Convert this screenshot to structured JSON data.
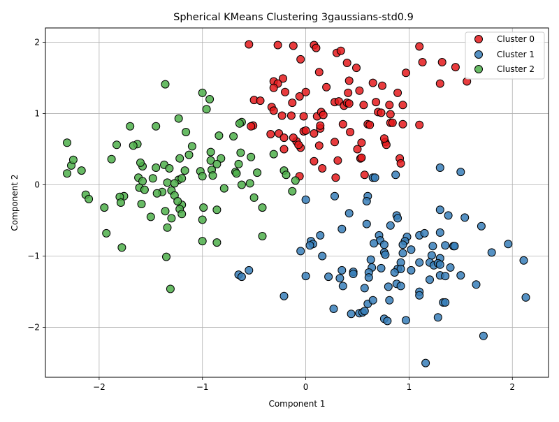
{
  "chart_data": {
    "type": "scatter",
    "title": "Spherical KMeans Clustering 3gaussians-std0.9",
    "xlabel": "Component 1",
    "ylabel": "Component 2",
    "xlim": [
      -2.52,
      2.35
    ],
    "ylim": [
      -2.7,
      2.2
    ],
    "x_ticks": [
      -2,
      -1,
      0,
      1,
      2
    ],
    "y_ticks": [
      -2,
      -1,
      0,
      1,
      2
    ],
    "grid": true,
    "legend_position": "top-right",
    "series": [
      {
        "name": "Cluster 0",
        "color": "#e41a1c",
        "points": [
          [
            -0.55,
            1.97
          ],
          [
            -0.27,
            1.96
          ],
          [
            -0.12,
            1.95
          ],
          [
            0.08,
            1.96
          ],
          [
            0.1,
            1.92
          ],
          [
            0.3,
            1.85
          ],
          [
            0.34,
            1.88
          ],
          [
            0.4,
            1.71
          ],
          [
            0.49,
            1.64
          ],
          [
            1.1,
            1.94
          ],
          [
            1.13,
            1.72
          ],
          [
            1.32,
            1.72
          ],
          [
            1.45,
            1.65
          ],
          [
            1.56,
            1.45
          ],
          [
            -0.05,
            1.76
          ],
          [
            0.13,
            1.58
          ],
          [
            -0.31,
            1.45
          ],
          [
            -0.22,
            1.49
          ],
          [
            -0.27,
            1.42
          ],
          [
            -0.31,
            1.36
          ],
          [
            -0.2,
            1.3
          ],
          [
            0.2,
            1.37
          ],
          [
            0.42,
            1.46
          ],
          [
            0.52,
            1.32
          ],
          [
            0.41,
            1.29
          ],
          [
            0.65,
            1.43
          ],
          [
            0.74,
            1.39
          ],
          [
            0.97,
            1.57
          ],
          [
            0.89,
            1.29
          ],
          [
            1.3,
            1.42
          ],
          [
            -0.5,
            1.19
          ],
          [
            -0.44,
            1.18
          ],
          [
            -0.06,
            1.24
          ],
          [
            0.0,
            1.3
          ],
          [
            -0.13,
            1.15
          ],
          [
            0.28,
            1.16
          ],
          [
            0.32,
            1.17
          ],
          [
            0.37,
            1.11
          ],
          [
            0.4,
            1.15
          ],
          [
            0.42,
            1.14
          ],
          [
            0.56,
            1.12
          ],
          [
            0.68,
            1.16
          ],
          [
            0.81,
            1.12
          ],
          [
            0.94,
            1.12
          ],
          [
            -0.33,
            1.09
          ],
          [
            -0.31,
            1.04
          ],
          [
            -0.23,
            0.97
          ],
          [
            -0.14,
            0.97
          ],
          [
            -0.02,
            0.96
          ],
          [
            0.11,
            0.96
          ],
          [
            0.15,
            1.02
          ],
          [
            0.17,
            0.98
          ],
          [
            0.7,
            1.02
          ],
          [
            0.73,
            1.01
          ],
          [
            0.82,
            0.99
          ],
          [
            -0.51,
            0.83
          ],
          [
            -0.53,
            0.82
          ],
          [
            -0.34,
            0.71
          ],
          [
            -0.26,
            0.72
          ],
          [
            -0.21,
            0.66
          ],
          [
            -0.09,
            0.61
          ],
          [
            -0.12,
            0.66
          ],
          [
            -0.02,
            0.75
          ],
          [
            0.0,
            0.76
          ],
          [
            0.08,
            0.72
          ],
          [
            0.14,
            0.79
          ],
          [
            0.14,
            0.83
          ],
          [
            0.36,
            0.85
          ],
          [
            0.43,
            0.74
          ],
          [
            0.6,
            0.85
          ],
          [
            0.62,
            0.84
          ],
          [
            0.77,
            0.6
          ],
          [
            0.78,
            0.56
          ],
          [
            0.82,
            0.87
          ],
          [
            0.84,
            0.87
          ],
          [
            0.94,
            0.85
          ],
          [
            1.1,
            0.84
          ],
          [
            -0.21,
            0.5
          ],
          [
            -0.05,
            0.52
          ],
          [
            -0.07,
            0.56
          ],
          [
            0.13,
            0.55
          ],
          [
            0.28,
            0.6
          ],
          [
            0.5,
            0.5
          ],
          [
            0.54,
            0.59
          ],
          [
            0.76,
            0.65
          ],
          [
            0.08,
            0.33
          ],
          [
            0.16,
            0.23
          ],
          [
            0.31,
            0.34
          ],
          [
            0.53,
            0.37
          ],
          [
            0.54,
            0.38
          ],
          [
            0.91,
            0.37
          ],
          [
            0.92,
            0.3
          ],
          [
            -0.06,
            0.12
          ],
          [
            0.29,
            0.1
          ],
          [
            0.57,
            0.14
          ]
        ]
      },
      {
        "name": "Cluster 1",
        "color": "#377eb8",
        "points": [
          [
            1.3,
            0.24
          ],
          [
            1.5,
            0.18
          ],
          [
            0.87,
            0.14
          ],
          [
            0.65,
            0.1
          ],
          [
            0.67,
            0.1
          ],
          [
            0.0,
            -0.21
          ],
          [
            0.28,
            -0.16
          ],
          [
            0.6,
            -0.16
          ],
          [
            0.59,
            -0.23
          ],
          [
            1.3,
            -0.35
          ],
          [
            1.38,
            -0.43
          ],
          [
            1.54,
            -0.46
          ],
          [
            0.42,
            -0.4
          ],
          [
            0.82,
            -0.57
          ],
          [
            0.88,
            -0.43
          ],
          [
            0.89,
            -0.47
          ],
          [
            0.35,
            -0.62
          ],
          [
            0.59,
            -0.55
          ],
          [
            1.7,
            -0.58
          ],
          [
            1.3,
            -0.67
          ],
          [
            1.1,
            -0.71
          ],
          [
            1.15,
            -0.68
          ],
          [
            0.98,
            -0.73
          ],
          [
            0.71,
            -0.71
          ],
          [
            0.72,
            -0.78
          ],
          [
            0.66,
            -0.82
          ],
          [
            0.76,
            -0.84
          ],
          [
            0.96,
            -0.79
          ],
          [
            0.94,
            -0.84
          ],
          [
            1.02,
            -0.91
          ],
          [
            1.23,
            -0.86
          ],
          [
            1.35,
            -0.85
          ],
          [
            1.43,
            -0.86
          ],
          [
            1.44,
            -0.86
          ],
          [
            0.05,
            -0.79
          ],
          [
            0.07,
            -0.83
          ],
          [
            0.04,
            -0.85
          ],
          [
            0.14,
            -0.71
          ],
          [
            -0.05,
            -0.93
          ],
          [
            0.76,
            -0.95
          ],
          [
            0.77,
            -0.98
          ],
          [
            0.94,
            -0.96
          ],
          [
            1.22,
            -0.99
          ],
          [
            1.3,
            -1.03
          ],
          [
            1.8,
            -0.95
          ],
          [
            1.96,
            -0.83
          ],
          [
            2.11,
            -1.06
          ],
          [
            0.16,
            -1.0
          ],
          [
            0.63,
            -1.05
          ],
          [
            0.73,
            -1.17
          ],
          [
            0.64,
            -1.16
          ],
          [
            0.89,
            -1.18
          ],
          [
            0.92,
            -1.09
          ],
          [
            0.92,
            -1.18
          ],
          [
            0.86,
            -1.23
          ],
          [
            1.02,
            -1.2
          ],
          [
            1.1,
            -1.09
          ],
          [
            1.2,
            -1.09
          ],
          [
            1.24,
            -1.13
          ],
          [
            1.28,
            -1.1
          ],
          [
            1.3,
            -1.12
          ],
          [
            1.4,
            -1.16
          ],
          [
            0.35,
            -1.2
          ],
          [
            0.46,
            -1.22
          ],
          [
            0.46,
            -1.25
          ],
          [
            0.61,
            -1.23
          ],
          [
            0.61,
            -1.3
          ],
          [
            0.33,
            -1.31
          ],
          [
            0.22,
            -1.29
          ],
          [
            0.0,
            -1.28
          ],
          [
            -0.65,
            -1.26
          ],
          [
            -0.62,
            -1.29
          ],
          [
            -0.55,
            -1.2
          ],
          [
            0.36,
            -1.42
          ],
          [
            0.57,
            -1.45
          ],
          [
            0.8,
            -1.43
          ],
          [
            0.88,
            -1.39
          ],
          [
            0.92,
            -1.42
          ],
          [
            1.1,
            -1.5
          ],
          [
            1.1,
            -1.55
          ],
          [
            1.2,
            -1.33
          ],
          [
            1.3,
            -1.27
          ],
          [
            1.35,
            -1.28
          ],
          [
            1.5,
            -1.27
          ],
          [
            1.65,
            -1.4
          ],
          [
            2.13,
            -1.58
          ],
          [
            -0.21,
            -1.56
          ],
          [
            0.27,
            -1.74
          ],
          [
            0.44,
            -1.81
          ],
          [
            0.52,
            -1.8
          ],
          [
            0.55,
            -1.79
          ],
          [
            0.57,
            -1.77
          ],
          [
            0.6,
            -1.67
          ],
          [
            0.65,
            -1.62
          ],
          [
            0.81,
            -1.62
          ],
          [
            1.28,
            -1.86
          ],
          [
            1.33,
            -1.65
          ],
          [
            1.35,
            -1.65
          ],
          [
            0.76,
            -1.88
          ],
          [
            0.79,
            -1.91
          ],
          [
            0.97,
            -1.9
          ],
          [
            1.72,
            -2.12
          ],
          [
            1.16,
            -2.5
          ]
        ]
      },
      {
        "name": "Cluster 2",
        "color": "#4daf4a",
        "points": [
          [
            -1.36,
            1.41
          ],
          [
            -1.0,
            1.29
          ],
          [
            -0.93,
            1.2
          ],
          [
            -0.96,
            1.06
          ],
          [
            -1.23,
            0.93
          ],
          [
            -1.7,
            0.82
          ],
          [
            -1.45,
            0.82
          ],
          [
            -0.62,
            0.88
          ],
          [
            -0.64,
            0.86
          ],
          [
            -1.16,
            0.74
          ],
          [
            -0.84,
            0.69
          ],
          [
            -0.7,
            0.68
          ],
          [
            -1.83,
            0.56
          ],
          [
            -1.63,
            0.57
          ],
          [
            -1.67,
            0.55
          ],
          [
            -1.1,
            0.54
          ],
          [
            -2.31,
            0.59
          ],
          [
            -0.31,
            0.43
          ],
          [
            -0.63,
            0.45
          ],
          [
            -0.53,
            0.39
          ],
          [
            -0.92,
            0.46
          ],
          [
            -0.82,
            0.37
          ],
          [
            -0.92,
            0.34
          ],
          [
            -0.86,
            0.29
          ],
          [
            -0.65,
            0.29
          ],
          [
            -1.13,
            0.42
          ],
          [
            -1.22,
            0.37
          ],
          [
            -1.37,
            0.28
          ],
          [
            -1.45,
            0.24
          ],
          [
            -1.58,
            0.26
          ],
          [
            -1.6,
            0.31
          ],
          [
            -1.88,
            0.36
          ],
          [
            -2.27,
            0.27
          ],
          [
            -2.25,
            0.35
          ],
          [
            -2.17,
            0.2
          ],
          [
            -2.31,
            0.16
          ],
          [
            -1.17,
            0.2
          ],
          [
            -1.32,
            0.23
          ],
          [
            -1.02,
            0.19
          ],
          [
            -0.91,
            0.21
          ],
          [
            -0.9,
            0.13
          ],
          [
            -1.0,
            0.12
          ],
          [
            -0.68,
            0.18
          ],
          [
            -0.67,
            0.16
          ],
          [
            -0.47,
            0.17
          ],
          [
            -0.62,
            0.0
          ],
          [
            -0.54,
            0.02
          ],
          [
            -0.21,
            0.2
          ],
          [
            -0.19,
            0.14
          ],
          [
            -0.1,
            0.06
          ],
          [
            -0.13,
            -0.09
          ],
          [
            -1.23,
            0.07
          ],
          [
            -1.2,
            0.09
          ],
          [
            -1.34,
            0.03
          ],
          [
            -1.27,
            0.02
          ],
          [
            -1.48,
            0.09
          ],
          [
            -1.62,
            0.1
          ],
          [
            -1.58,
            0.05
          ],
          [
            -1.61,
            -0.04
          ],
          [
            -1.56,
            -0.07
          ],
          [
            -1.3,
            -0.08
          ],
          [
            -1.2,
            -0.28
          ],
          [
            -1.22,
            -0.34
          ],
          [
            -1.2,
            -0.41
          ],
          [
            -1.27,
            -0.15
          ],
          [
            -1.24,
            -0.23
          ],
          [
            -1.39,
            -0.1
          ],
          [
            -1.44,
            -0.12
          ],
          [
            -1.36,
            -0.37
          ],
          [
            -1.3,
            -0.47
          ],
          [
            -1.34,
            -0.6
          ],
          [
            -1.59,
            -0.27
          ],
          [
            -1.5,
            -0.45
          ],
          [
            -1.76,
            -0.16
          ],
          [
            -1.8,
            -0.17
          ],
          [
            -1.79,
            -0.25
          ],
          [
            -1.95,
            -0.32
          ],
          [
            -2.13,
            -0.14
          ],
          [
            -2.1,
            -0.2
          ],
          [
            -0.79,
            -0.05
          ],
          [
            -0.86,
            -0.35
          ],
          [
            -0.99,
            -0.32
          ],
          [
            -1.0,
            -0.49
          ],
          [
            -0.5,
            -0.18
          ],
          [
            -0.42,
            -0.32
          ],
          [
            -0.42,
            -0.72
          ],
          [
            -1.93,
            -0.68
          ],
          [
            -1.78,
            -0.88
          ],
          [
            -1.0,
            -0.79
          ],
          [
            -0.86,
            -0.81
          ],
          [
            -1.35,
            -1.01
          ],
          [
            -1.31,
            -1.46
          ]
        ]
      }
    ]
  }
}
